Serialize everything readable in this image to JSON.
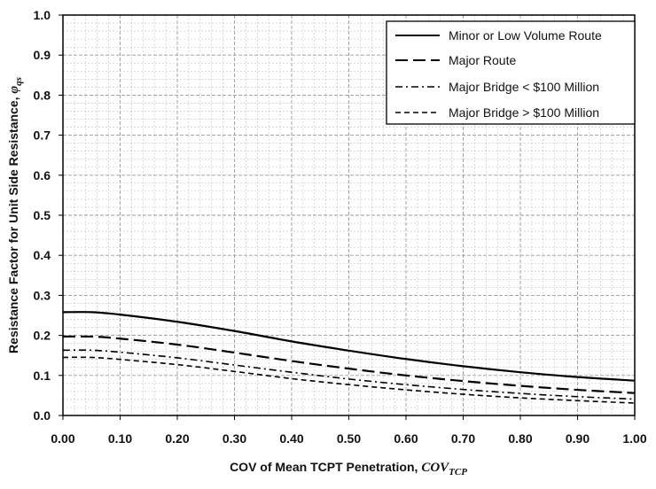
{
  "chart_data": {
    "type": "line",
    "title": "",
    "xlabel": {
      "text": "COV of Mean TCPT Penetration, ",
      "symbol": "COV",
      "subscript": "TCP"
    },
    "ylabel": {
      "text": "Resistance Factor for Unit Side Resistance, ",
      "symbol": "φ",
      "subscript": "qs"
    },
    "xlim": [
      0.0,
      1.0
    ],
    "ylim": [
      0.0,
      1.0
    ],
    "x_ticks": [
      "0.00",
      "0.10",
      "0.20",
      "0.30",
      "0.40",
      "0.50",
      "0.60",
      "0.70",
      "0.80",
      "0.90",
      "1.00"
    ],
    "y_ticks": [
      "0.0",
      "0.1",
      "0.2",
      "0.3",
      "0.4",
      "0.5",
      "0.6",
      "0.7",
      "0.8",
      "0.9",
      "1.0"
    ],
    "grid": true,
    "legend_position": "top-right",
    "x": [
      0.0,
      0.05,
      0.1,
      0.2,
      0.3,
      0.4,
      0.5,
      0.6,
      0.7,
      0.8,
      0.9,
      1.0
    ],
    "series": [
      {
        "name": "Minor or Low Volume Route",
        "style": "solid",
        "values": [
          0.258,
          0.258,
          0.252,
          0.234,
          0.211,
          0.185,
          0.162,
          0.141,
          0.123,
          0.108,
          0.096,
          0.087
        ]
      },
      {
        "name": "Major Route",
        "style": "long-dash",
        "values": [
          0.197,
          0.197,
          0.192,
          0.177,
          0.157,
          0.136,
          0.117,
          0.1,
          0.086,
          0.074,
          0.064,
          0.056
        ]
      },
      {
        "name": "Major Bridge < $100 Million",
        "style": "dash-dot",
        "values": [
          0.163,
          0.163,
          0.158,
          0.144,
          0.126,
          0.108,
          0.091,
          0.077,
          0.065,
          0.055,
          0.047,
          0.041
        ]
      },
      {
        "name": "Major Bridge > $100 Million",
        "style": "short-dash",
        "values": [
          0.145,
          0.145,
          0.14,
          0.127,
          0.11,
          0.092,
          0.077,
          0.064,
          0.053,
          0.044,
          0.037,
          0.031
        ]
      }
    ]
  }
}
